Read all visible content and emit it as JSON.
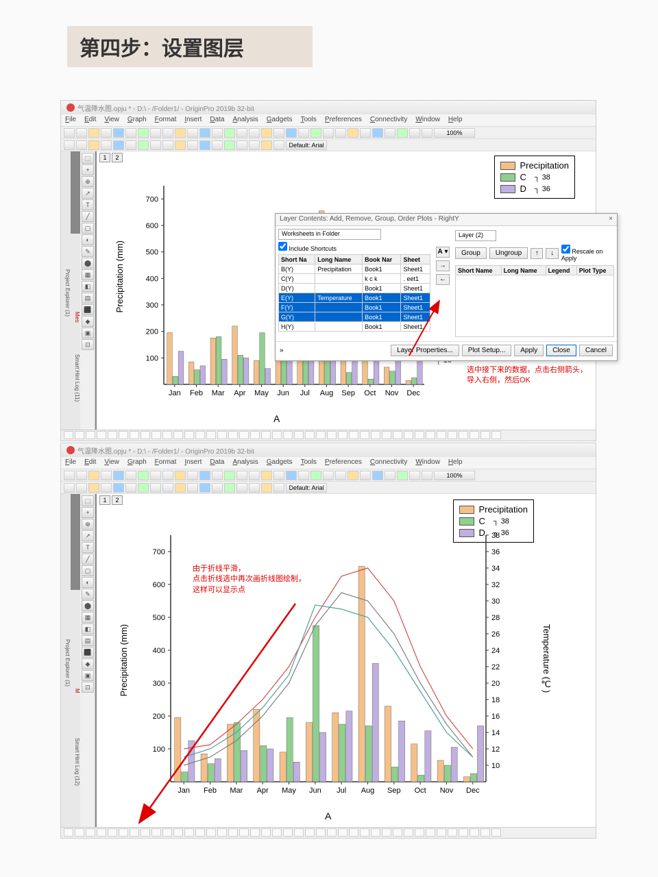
{
  "heading": "第四步：设置图层",
  "app_title": "气温降水图.opju * - D:\\  - /Folder1/ - OriginPro 2019b 32-bit",
  "menus": [
    "File",
    "Edit",
    "View",
    "Graph",
    "Format",
    "Insert",
    "Data",
    "Analysis",
    "Gadgets",
    "Tools",
    "Preferences",
    "Connectivity",
    "Window",
    "Help"
  ],
  "font_default": "Default: Arial",
  "zoom": "100%",
  "sidebar_labels": {
    "pe": "Project Explorer (1)",
    "ml": "Messages Log (4)",
    "sh": "Smart Hint Log (11)",
    "sh2": "Smart Hint Log (12)"
  },
  "layer_tabs": [
    "1",
    "2"
  ],
  "legend": {
    "items": [
      {
        "label": "Precipitation",
        "color": "#f5c088"
      },
      {
        "label": "C",
        "color": "#8fd08f"
      },
      {
        "label": "D",
        "color": "#c0b0e0"
      }
    ],
    "right_vals": [
      "38",
      "36"
    ]
  },
  "chart": {
    "ylabel": "Precipitation (mm)",
    "xlabel": "A",
    "y2label": "Temperature (℃)",
    "months": [
      "Jan",
      "Feb",
      "Mar",
      "Apr",
      "May",
      "Jun",
      "Jul",
      "Aug",
      "Sep",
      "Oct",
      "Nov",
      "Dec"
    ],
    "yticks": [
      100,
      200,
      300,
      400,
      500,
      600,
      700
    ],
    "y2ticks_small": [
      10,
      12,
      14
    ],
    "y2ticks_full": [
      10,
      12,
      14,
      16,
      18,
      20,
      22,
      24,
      26,
      28,
      30,
      32,
      34,
      36,
      38
    ],
    "colors": {
      "precip": "#f5c088",
      "c": "#8fd08f",
      "d": "#c0b0e0",
      "axis": "#333",
      "line_e": "#d05050",
      "line_f": "#50a0a0",
      "line_g": "#808080"
    },
    "precip": [
      195,
      85,
      175,
      220,
      90,
      180,
      210,
      655,
      230,
      115,
      65,
      15
    ],
    "c": [
      30,
      55,
      180,
      110,
      195,
      475,
      175,
      170,
      45,
      20,
      50,
      25
    ],
    "d": [
      125,
      70,
      95,
      100,
      60,
      150,
      215,
      360,
      185,
      155,
      105,
      170
    ],
    "line_e": [
      12,
      12.5,
      15,
      18,
      22,
      28,
      33,
      34,
      30,
      22,
      16,
      12
    ],
    "line_f": [
      11,
      12,
      14,
      17,
      21,
      29.5,
      29,
      28,
      24,
      19,
      14,
      11
    ],
    "line_g": [
      10,
      11,
      13,
      16,
      20,
      27,
      31,
      30,
      26,
      20,
      15,
      11
    ]
  },
  "dialog": {
    "title": "Layer Contents: Add, Remove, Group, Order Plots - RightY",
    "worksheets_label": "Worksheets in Folder",
    "include_sc": "Include Shortcuts",
    "layer_label": "Layer (2)",
    "group": "Group",
    "ungroup": "Ungroup",
    "rescale": "Rescale on Apply",
    "left_cols": [
      "Short Na",
      "Long Name",
      "Book Nar",
      "Sheet"
    ],
    "right_cols": [
      "Short Name",
      "Long Name",
      "Legend",
      "Plot Type"
    ],
    "rows": [
      {
        "sn": "B(Y)",
        "ln": "Precipitation",
        "bk": "Book1",
        "sh": "Sheet1",
        "sel": false
      },
      {
        "sn": "C(Y)",
        "ln": "",
        "bk": "k c k",
        "sh": " . eet1",
        "sel": false
      },
      {
        "sn": "D(Y)",
        "ln": "",
        "bk": "Book1",
        "sh": "Sheet1",
        "sel": false
      },
      {
        "sn": "E(Y)",
        "ln": "Temperature",
        "bk": "Book1",
        "sh": "Sheet1",
        "sel": true
      },
      {
        "sn": "F(Y)",
        "ln": "",
        "bk": "Book1",
        "sh": "Sheet1",
        "sel": true
      },
      {
        "sn": "G(Y)",
        "ln": "",
        "bk": "Book1",
        "sh": "Sheet1",
        "sel": true
      },
      {
        "sn": "H(Y)",
        "ln": "",
        "bk": "Book1",
        "sh": "Sheet1",
        "sel": false
      }
    ],
    "a_btn": "A",
    "buttons": {
      "lp": "Layer Properties...",
      "ps": "Plot Setup...",
      "apply": "Apply",
      "close": "Close",
      "cancel": "Cancel"
    }
  },
  "note1": "选中接下来的数据，点击右侧箭头，导入右侧，然后OK",
  "note2": "由于折线平滑，\n点击折线选中再次画折线图绘制，\n这样可以显示点"
}
